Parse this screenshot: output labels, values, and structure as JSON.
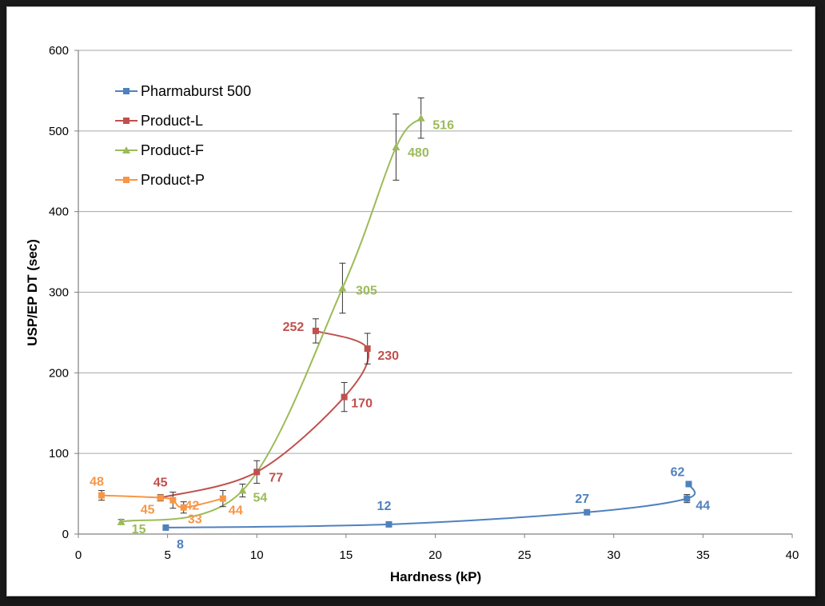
{
  "chart_data": {
    "type": "scatter",
    "title": "",
    "xlabel": "Hardness (kP)",
    "ylabel": "USP/EP DT (sec)",
    "xlim": [
      0,
      40
    ],
    "ylim": [
      0,
      600
    ],
    "xticks": [
      0,
      5,
      10,
      15,
      20,
      25,
      30,
      35,
      40
    ],
    "yticks": [
      0,
      100,
      200,
      300,
      400,
      500,
      600
    ],
    "grid": "horizontal",
    "legend_position": "top-left",
    "series": [
      {
        "name": "Pharmaburst 500",
        "color": "#4f81bd",
        "marker": "square",
        "points": [
          {
            "x": 4.9,
            "y": 8,
            "err": 0,
            "label": "8"
          },
          {
            "x": 17.4,
            "y": 12,
            "err": 0,
            "label": "12"
          },
          {
            "x": 28.5,
            "y": 27,
            "err": 0,
            "label": "27"
          },
          {
            "x": 34.1,
            "y": 44,
            "err": 5,
            "label": "44"
          },
          {
            "x": 34.2,
            "y": 62,
            "err": 0,
            "label": "62"
          }
        ]
      },
      {
        "name": "Product-L",
        "color": "#c0504d",
        "marker": "square",
        "points": [
          {
            "x": 4.6,
            "y": 45,
            "err": 0,
            "label": "45"
          },
          {
            "x": 10.0,
            "y": 77,
            "err": 14,
            "label": "77"
          },
          {
            "x": 14.9,
            "y": 170,
            "err": 18,
            "label": "170"
          },
          {
            "x": 16.2,
            "y": 230,
            "err": 19,
            "label": "230"
          },
          {
            "x": 13.3,
            "y": 252,
            "err": 15,
            "label": "252"
          }
        ]
      },
      {
        "name": "Product-F",
        "color": "#9bbb59",
        "marker": "triangle",
        "points": [
          {
            "x": 2.4,
            "y": 15,
            "err": 3,
            "label": "15"
          },
          {
            "x": 9.2,
            "y": 54,
            "err": 8,
            "label": "54"
          },
          {
            "x": 14.8,
            "y": 305,
            "err": 31,
            "label": "305"
          },
          {
            "x": 17.8,
            "y": 480,
            "err": 41,
            "label": "480"
          },
          {
            "x": 19.2,
            "y": 516,
            "err": 25,
            "label": "516"
          }
        ]
      },
      {
        "name": "Product-P",
        "color": "#f79646",
        "marker": "square",
        "points": [
          {
            "x": 1.3,
            "y": 48,
            "err": 6,
            "label": "48"
          },
          {
            "x": 4.6,
            "y": 45,
            "err": 4,
            "label": "45"
          },
          {
            "x": 5.3,
            "y": 42,
            "err": 10,
            "label": "42"
          },
          {
            "x": 5.9,
            "y": 33,
            "err": 7,
            "label": "33"
          },
          {
            "x": 8.1,
            "y": 44,
            "err": 10,
            "label": "44"
          }
        ]
      }
    ]
  }
}
